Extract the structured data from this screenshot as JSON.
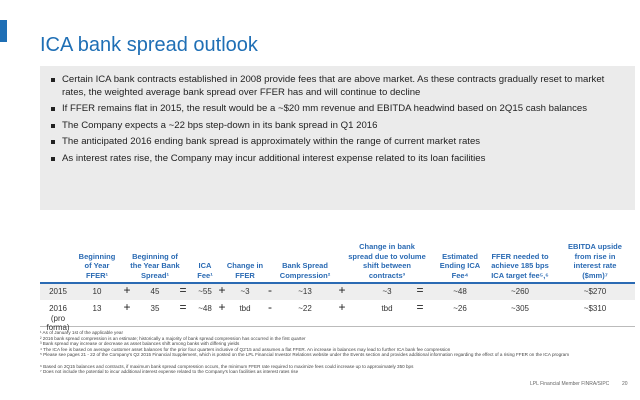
{
  "title": "ICA bank spread outlook",
  "bullets": [
    "Certain ICA bank contracts established in 2008 provide fees that are above market.  As these contracts gradually reset to market rates, the weighted average bank spread over FFER has and will continue to decline",
    "If FFER remains flat in 2015, the result would be a ~$20 mm revenue and EBITDA headwind based on 2Q15 cash balances",
    "The Company expects a ~22 bps step-down in its bank spread in Q1 2016",
    "The anticipated 2016 ending bank spread is approximately within the range of current market rates",
    "As interest rates rise, the Company may incur additional interest expense related to its loan facilities"
  ],
  "table": {
    "headers": [
      "Beginning of Year FFER¹",
      "Beginning of the Year Bank Spread¹",
      "ICA Fee¹",
      "Change in FFER",
      "Bank Spread Compression²",
      "Change in bank spread due to volume shift between contracts³",
      "Estimated Ending ICA Fee⁴",
      "FFER needed to achieve 185 bps ICA target fee⁵,⁶",
      "EBITDA upside from rise in interest rate ($mm)⁷"
    ],
    "rows": [
      {
        "label": [
          "2015"
        ],
        "cells": [
          "10",
          "45",
          "~55",
          "~3",
          "~13",
          "~3",
          "~48",
          "~260",
          "~$270"
        ],
        "ops": [
          "+",
          "=",
          "+",
          "-",
          "+",
          "="
        ]
      },
      {
        "label": [
          "2016",
          "(pro forma)"
        ],
        "cells": [
          "13",
          "35",
          "~48",
          "tbd",
          "~22",
          "tbd",
          "~26",
          "~305",
          "~$310"
        ],
        "ops": [
          "+",
          "=",
          "+",
          "-",
          "+",
          "="
        ]
      }
    ]
  },
  "footnotes": [
    "¹ As of January 1st of the applicable year",
    "² 2016 bank spread compression is an estimate; historically a majority of bank spread compression has occurred in the first quarter",
    "³ Bank spread may increase or decrease as asset balances shift among banks with differing yields",
    "⁴ The ICA fee is based on average customer asset balances for the prior four quarters inclusive of Q2'15 and assumes a flat FFER.  An increase in balances may lead to further ICA bank fee compression",
    "⁵ Please see pages 21 - 22 of the Company's Q2 2015 Financial Supplement, which is posted on the LPL Financial Investor Relations website under the Events section and provides additional information regarding the effect of a rising FFER on the ICA program",
    "⁶ Based on 2Q15 balances and contracts, if maximum bank spread compression occurs, the minimum FFER rate required to maximize fees could increase up to approximately 350 bps",
    "⁷ Does not include the potential to incur additional interest expense related to the Company's loan facilities as interest rates rise"
  ],
  "footer": {
    "text": "LPL Financial  Member FINRA/SIPC",
    "page": "20"
  }
}
